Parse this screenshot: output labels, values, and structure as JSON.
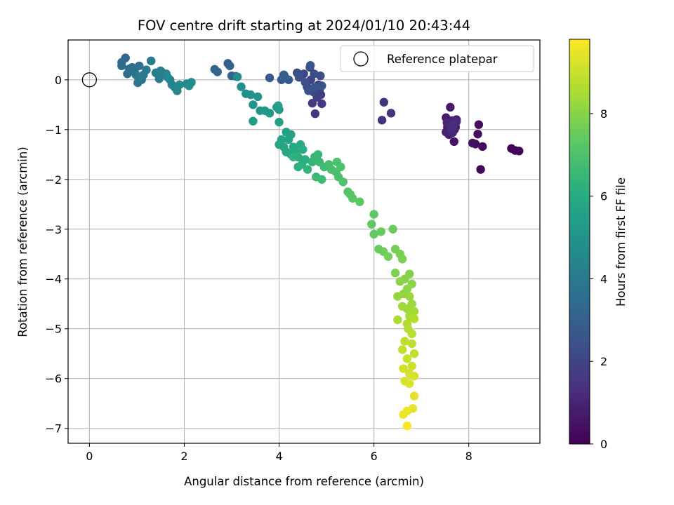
{
  "chart_data": {
    "type": "scatter",
    "title": "FOV centre drift starting at 2024/01/10 20:43:44",
    "xlabel": "Angular distance from reference (arcmin)",
    "ylabel": "Rotation from reference (arcmin)",
    "xlim": [
      -0.45,
      9.5
    ],
    "ylim": [
      -7.3,
      0.8
    ],
    "xticks": [
      0,
      2,
      4,
      6,
      8
    ],
    "yticks": [
      0,
      -1,
      -2,
      -3,
      -4,
      -5,
      -6,
      -7
    ],
    "grid": true,
    "legend": {
      "position": "upper right",
      "entries": [
        "Reference platepar"
      ]
    },
    "reference_point": {
      "x": 0,
      "y": 0
    },
    "colorbar": {
      "label": "Hours from first FF file",
      "range": [
        0,
        9.8
      ],
      "ticks": [
        0,
        2,
        4,
        6,
        8
      ],
      "colormap": "viridis"
    },
    "points": [
      [
        8.98,
        -1.42,
        0.05
      ],
      [
        9.06,
        -1.43,
        0.1
      ],
      [
        8.9,
        -1.38,
        0.15
      ],
      [
        8.25,
        -1.8,
        0.2
      ],
      [
        8.29,
        -1.34,
        0.25
      ],
      [
        8.14,
        -1.29,
        0.3
      ],
      [
        8.21,
        -0.9,
        0.35
      ],
      [
        8.19,
        -1.09,
        0.4
      ],
      [
        8.08,
        -1.27,
        0.45
      ],
      [
        7.69,
        -1.24,
        0.5
      ],
      [
        7.74,
        -0.8,
        0.55
      ],
      [
        7.72,
        -0.95,
        0.6
      ],
      [
        7.61,
        -0.55,
        0.65
      ],
      [
        7.52,
        -0.76,
        0.7
      ],
      [
        7.55,
        -0.95,
        0.75
      ],
      [
        7.58,
        -1.1,
        0.8
      ],
      [
        7.65,
        -0.82,
        0.85
      ],
      [
        7.52,
        -1.05,
        0.9
      ],
      [
        7.7,
        -1.0,
        0.95
      ],
      [
        7.6,
        -0.88,
        1.0
      ],
      [
        7.66,
        -1.06,
        1.05
      ],
      [
        7.54,
        -0.86,
        1.1
      ],
      [
        7.74,
        -0.84,
        1.15
      ],
      [
        7.62,
        -0.96,
        1.2
      ],
      [
        7.69,
        -0.9,
        1.25
      ],
      [
        6.17,
        -0.81,
        1.35
      ],
      [
        6.21,
        -0.45,
        1.4
      ],
      [
        6.36,
        -0.67,
        1.45
      ],
      [
        4.76,
        -0.68,
        1.6
      ],
      [
        4.7,
        -0.47,
        1.65
      ],
      [
        4.9,
        -0.48,
        1.7
      ],
      [
        4.8,
        -0.35,
        1.75
      ],
      [
        4.88,
        -0.3,
        1.8
      ],
      [
        4.85,
        -0.2,
        1.85
      ],
      [
        4.83,
        -0.1,
        1.9
      ],
      [
        4.73,
        -0.25,
        1.95
      ],
      [
        4.67,
        0.0,
        2.0
      ],
      [
        4.59,
        -0.14,
        2.05
      ],
      [
        4.52,
        0.12,
        2.1
      ],
      [
        4.38,
        0.14,
        2.15
      ],
      [
        4.65,
        0.25,
        2.2
      ],
      [
        4.74,
        0.12,
        2.25
      ],
      [
        4.87,
        0.08,
        2.3
      ],
      [
        4.42,
        0.05,
        2.35
      ],
      [
        4.55,
        -0.05,
        2.4
      ],
      [
        4.9,
        -0.12,
        2.45
      ],
      [
        4.62,
        -0.22,
        2.5
      ],
      [
        4.75,
        -0.15,
        2.55
      ],
      [
        4.66,
        0.29,
        2.6
      ],
      [
        4.1,
        0.1,
        2.7
      ],
      [
        4.2,
        0.0,
        2.75
      ],
      [
        4.05,
        0.0,
        2.8
      ],
      [
        3.8,
        0.04,
        2.85
      ],
      [
        4.12,
        0.06,
        2.9
      ],
      [
        2.92,
        0.33,
        3.0
      ],
      [
        2.96,
        0.28,
        3.05
      ],
      [
        3.09,
        0.07,
        3.1
      ],
      [
        3.0,
        0.08,
        3.15
      ],
      [
        2.7,
        0.16,
        3.2
      ],
      [
        2.64,
        0.21,
        3.25
      ],
      [
        0.76,
        0.44,
        3.3
      ],
      [
        0.68,
        0.35,
        3.35
      ],
      [
        0.68,
        0.28,
        3.4
      ],
      [
        0.84,
        0.22,
        3.45
      ],
      [
        0.95,
        0.18,
        3.5
      ],
      [
        0.8,
        0.12,
        3.55
      ],
      [
        0.9,
        0.25,
        3.6
      ],
      [
        1.05,
        0.28,
        3.65
      ],
      [
        0.98,
        0.1,
        3.7
      ],
      [
        1.1,
        0.0,
        3.75
      ],
      [
        1.02,
        -0.06,
        3.8
      ],
      [
        1.14,
        0.1,
        3.85
      ],
      [
        1.2,
        0.2,
        3.9
      ],
      [
        1.08,
        0.05,
        3.95
      ],
      [
        1.3,
        0.38,
        4.0
      ],
      [
        1.5,
        0.18,
        4.05
      ],
      [
        1.4,
        0.14,
        4.1
      ],
      [
        1.47,
        0.02,
        4.15
      ],
      [
        1.58,
        0.11,
        4.2
      ],
      [
        1.52,
        0.16,
        4.25
      ],
      [
        1.62,
        0.12,
        4.3
      ],
      [
        1.7,
        0.0,
        4.35
      ],
      [
        1.74,
        -0.1,
        4.4
      ],
      [
        1.85,
        -0.22,
        4.45
      ],
      [
        1.8,
        -0.15,
        4.5
      ],
      [
        1.65,
        0.05,
        4.55
      ],
      [
        1.9,
        -0.1,
        4.6
      ],
      [
        2.05,
        -0.08,
        4.65
      ],
      [
        2.1,
        -0.12,
        4.7
      ],
      [
        2.15,
        -0.05,
        4.75
      ],
      [
        3.12,
        0.06,
        4.8
      ],
      [
        3.2,
        -0.14,
        4.85
      ],
      [
        3.3,
        -0.28,
        4.9
      ],
      [
        3.4,
        -0.3,
        4.95
      ],
      [
        3.55,
        -0.34,
        5.0
      ],
      [
        3.45,
        -0.5,
        5.05
      ],
      [
        3.6,
        -0.62,
        5.1
      ],
      [
        3.7,
        -0.62,
        5.15
      ],
      [
        3.8,
        -0.67,
        5.2
      ],
      [
        3.95,
        -0.55,
        5.25
      ],
      [
        4.0,
        -0.6,
        5.3
      ],
      [
        3.98,
        -0.52,
        5.35
      ],
      [
        3.45,
        -0.83,
        5.4
      ],
      [
        4.0,
        -0.85,
        5.45
      ],
      [
        4.15,
        -1.05,
        5.5
      ],
      [
        4.25,
        -1.1,
        5.55
      ],
      [
        4.2,
        -1.2,
        5.6
      ],
      [
        4.05,
        -1.2,
        5.65
      ],
      [
        4.0,
        -1.3,
        5.7
      ],
      [
        4.1,
        -1.35,
        5.75
      ],
      [
        4.15,
        -1.45,
        5.8
      ],
      [
        4.25,
        -1.5,
        5.85
      ],
      [
        4.35,
        -1.45,
        5.9
      ],
      [
        4.3,
        -1.35,
        5.95
      ],
      [
        4.45,
        -1.3,
        6.0
      ],
      [
        4.5,
        -1.4,
        6.05
      ],
      [
        4.4,
        -1.55,
        6.1
      ],
      [
        4.55,
        -1.6,
        6.15
      ],
      [
        4.48,
        -1.7,
        6.2
      ],
      [
        4.4,
        -1.75,
        6.25
      ],
      [
        4.3,
        -1.55,
        6.3
      ],
      [
        4.6,
        -1.8,
        6.35
      ],
      [
        4.7,
        -1.65,
        6.4
      ],
      [
        4.75,
        -1.55,
        6.45
      ],
      [
        4.82,
        -1.5,
        6.5
      ],
      [
        4.85,
        -1.65,
        6.55
      ],
      [
        4.78,
        -1.95,
        6.6
      ],
      [
        4.9,
        -2.0,
        6.65
      ],
      [
        4.95,
        -1.75,
        6.7
      ],
      [
        5.05,
        -1.7,
        6.75
      ],
      [
        5.1,
        -1.8,
        6.8
      ],
      [
        5.2,
        -1.85,
        6.85
      ],
      [
        5.25,
        -1.95,
        6.9
      ],
      [
        5.22,
        -1.65,
        6.95
      ],
      [
        5.3,
        -1.75,
        7.0
      ],
      [
        5.35,
        -2.05,
        7.05
      ],
      [
        5.45,
        -2.25,
        7.1
      ],
      [
        5.5,
        -2.3,
        7.15
      ],
      [
        5.55,
        -2.38,
        7.2
      ],
      [
        5.7,
        -2.45,
        7.25
      ],
      [
        6.0,
        -2.7,
        7.3
      ],
      [
        5.95,
        -2.9,
        7.35
      ],
      [
        6.0,
        -3.1,
        7.4
      ],
      [
        6.15,
        -3.05,
        7.45
      ],
      [
        6.4,
        -3.0,
        7.5
      ],
      [
        6.1,
        -3.4,
        7.55
      ],
      [
        6.2,
        -3.45,
        7.6
      ],
      [
        6.3,
        -3.55,
        7.65
      ],
      [
        6.45,
        -3.4,
        7.7
      ],
      [
        6.55,
        -3.5,
        7.75
      ],
      [
        6.6,
        -3.6,
        7.8
      ],
      [
        6.45,
        -3.88,
        7.85
      ],
      [
        6.75,
        -3.9,
        7.9
      ],
      [
        6.65,
        -4.0,
        7.95
      ],
      [
        6.55,
        -4.05,
        8.0
      ],
      [
        6.8,
        -4.1,
        8.05
      ],
      [
        6.7,
        -4.2,
        8.1
      ],
      [
        6.62,
        -4.3,
        8.15
      ],
      [
        6.5,
        -4.35,
        8.2
      ],
      [
        6.75,
        -4.35,
        8.25
      ],
      [
        6.8,
        -4.5,
        8.3
      ],
      [
        6.7,
        -4.6,
        8.35
      ],
      [
        6.6,
        -4.55,
        8.4
      ],
      [
        6.85,
        -4.65,
        8.45
      ],
      [
        6.75,
        -4.75,
        8.5
      ],
      [
        6.5,
        -4.82,
        8.55
      ],
      [
        6.7,
        -4.9,
        8.6
      ],
      [
        6.85,
        -4.8,
        8.65
      ],
      [
        6.72,
        -5.0,
        8.7
      ],
      [
        6.8,
        -5.1,
        8.75
      ],
      [
        6.65,
        -5.25,
        8.8
      ],
      [
        6.8,
        -5.3,
        8.85
      ],
      [
        6.6,
        -5.42,
        8.9
      ],
      [
        6.85,
        -5.5,
        8.95
      ],
      [
        6.7,
        -5.6,
        9.0
      ],
      [
        6.8,
        -5.75,
        9.05
      ],
      [
        6.62,
        -5.8,
        9.1
      ],
      [
        6.75,
        -5.9,
        9.15
      ],
      [
        6.85,
        -5.95,
        9.2
      ],
      [
        6.65,
        -6.05,
        9.25
      ],
      [
        6.75,
        -6.1,
        9.3
      ],
      [
        6.85,
        -6.35,
        9.35
      ],
      [
        6.82,
        -6.6,
        9.45
      ],
      [
        6.7,
        -6.65,
        9.5
      ],
      [
        6.62,
        -6.72,
        9.55
      ],
      [
        6.7,
        -6.95,
        9.7
      ]
    ]
  }
}
